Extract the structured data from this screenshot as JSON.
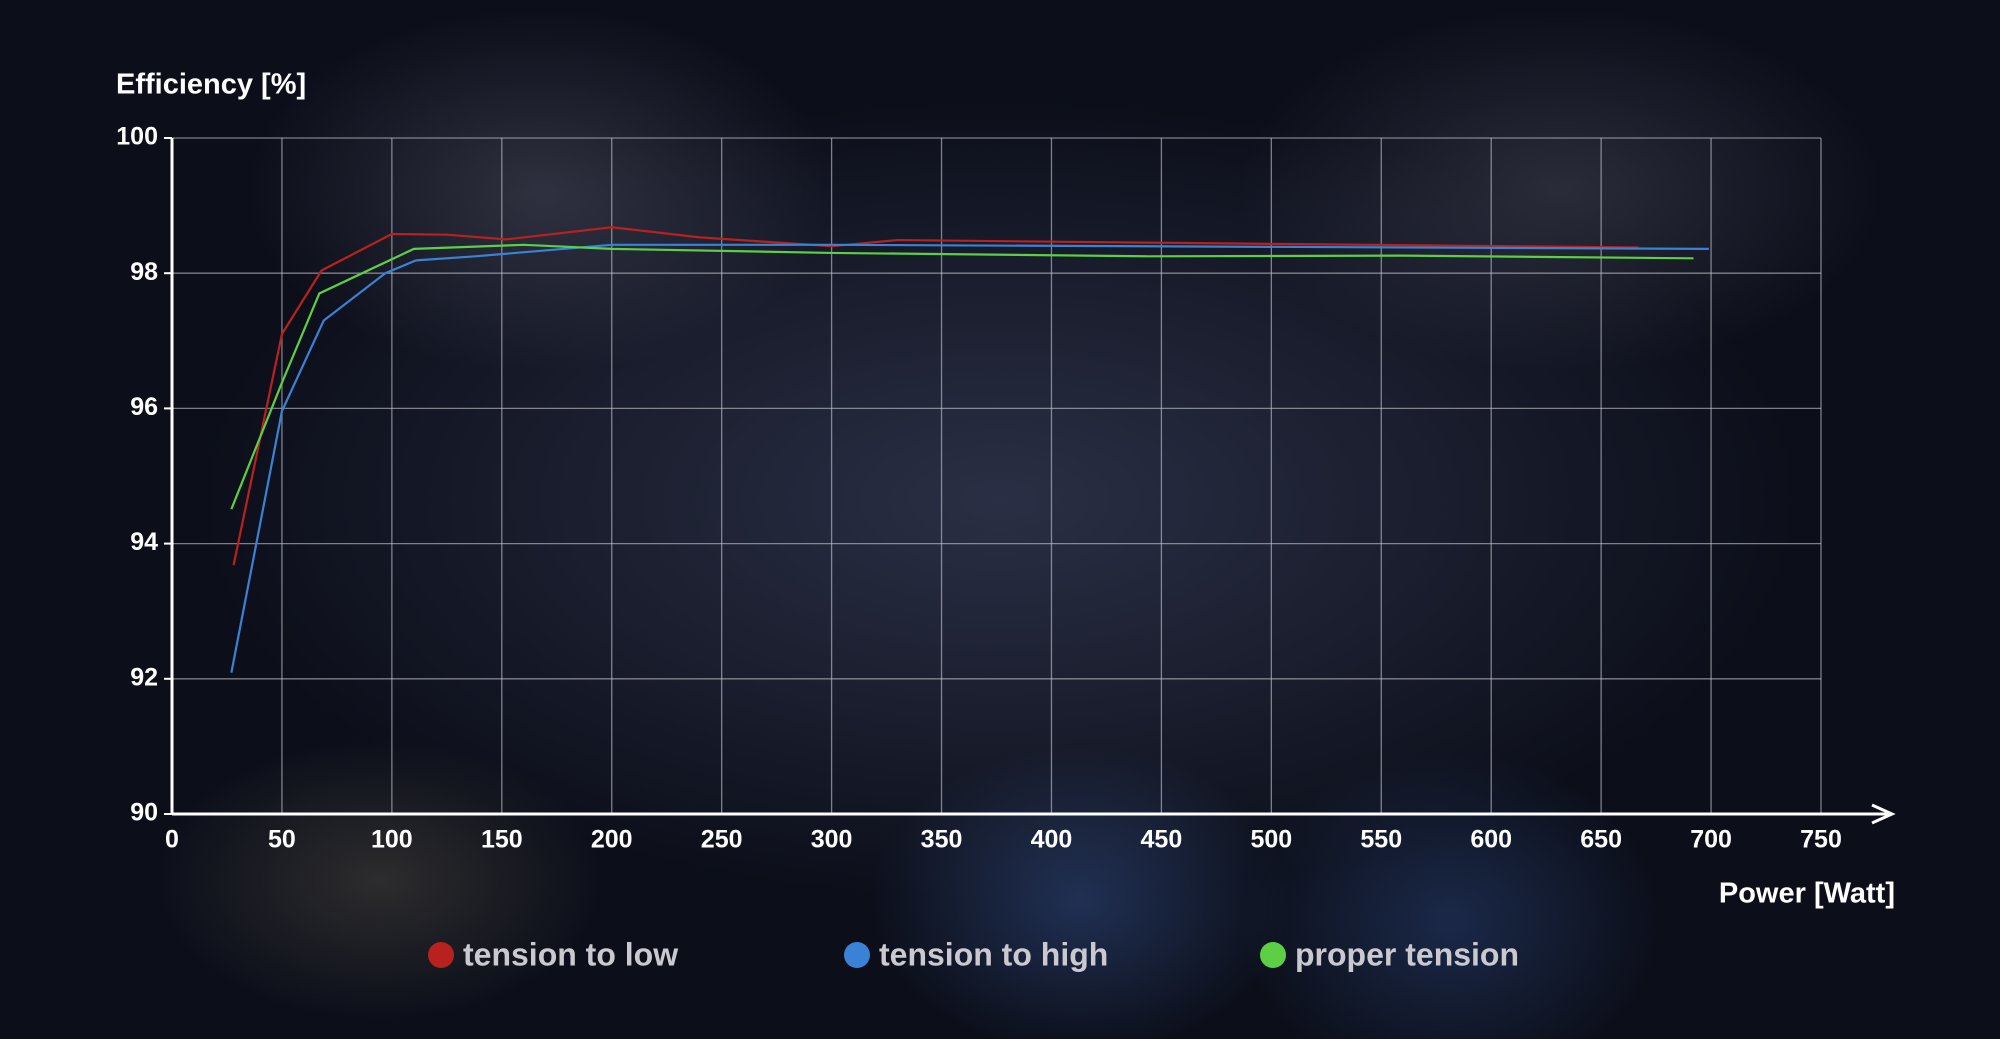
{
  "chart_data": {
    "type": "line",
    "y_label": "Efficiency [%]",
    "x_label": "Power [Watt]",
    "xlim": [
      0,
      750
    ],
    "xticks": [
      0,
      50,
      100,
      150,
      200,
      250,
      300,
      350,
      400,
      450,
      500,
      550,
      600,
      650,
      700,
      750
    ],
    "ylim": [
      90,
      100
    ],
    "yticks": [
      90,
      92,
      94,
      96,
      98,
      100
    ],
    "grid": true,
    "series": [
      {
        "name": "tension to low",
        "color": "#b8221e",
        "x": [
          28,
          50,
          68,
          100,
          125,
          152,
          200,
          240,
          300,
          330,
          450,
          667
        ],
        "values": [
          93.68,
          97.1,
          98.04,
          98.58,
          98.57,
          98.5,
          98.68,
          98.53,
          98.4,
          98.49,
          98.45,
          98.38
        ]
      },
      {
        "name": "tension to high",
        "color": "#3a82d6",
        "x": [
          27,
          50,
          69,
          97,
          111,
          138,
          200,
          300,
          699
        ],
        "values": [
          92.09,
          95.96,
          97.3,
          98.0,
          98.19,
          98.25,
          98.42,
          98.42,
          98.36
        ]
      },
      {
        "name": "proper tension",
        "color": "#5ccf45",
        "x": [
          27,
          50,
          67,
          110,
          160,
          200,
          300,
          444,
          560,
          692
        ],
        "values": [
          94.51,
          96.38,
          97.7,
          98.36,
          98.42,
          98.36,
          98.3,
          98.25,
          98.26,
          98.22
        ]
      }
    ]
  }
}
